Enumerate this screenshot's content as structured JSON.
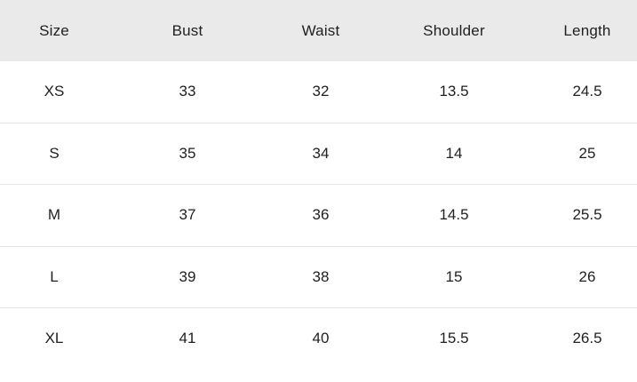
{
  "size_chart": {
    "columns": [
      "Size",
      "Bust",
      "Waist",
      "Shoulder",
      "Length"
    ],
    "rows": [
      [
        "XS",
        "33",
        "32",
        "13.5",
        "24.5"
      ],
      [
        "S",
        "35",
        "34",
        "14",
        "25"
      ],
      [
        "M",
        "37",
        "36",
        "14.5",
        "25.5"
      ],
      [
        "L",
        "39",
        "38",
        "15",
        "26"
      ],
      [
        "XL",
        "41",
        "40",
        "15.5",
        "26.5"
      ]
    ]
  },
  "colors": {
    "header_bg": "#eaeaea",
    "divider": "#e6e6e6",
    "text": "#212121",
    "background": "#ffffff"
  }
}
